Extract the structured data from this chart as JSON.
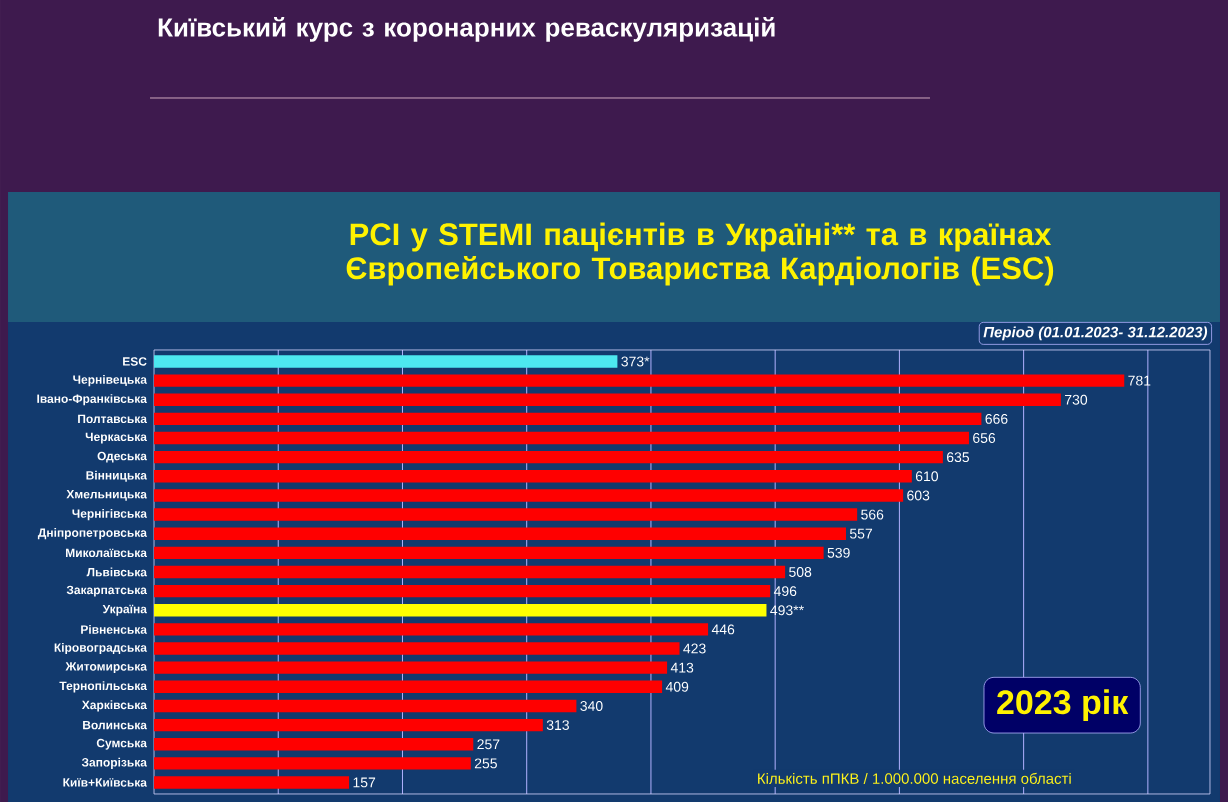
{
  "chart_data": {
    "type": "bar",
    "orientation": "horizontal",
    "title": "PCI у STEMI пацієнтів в Україні** та в країнах Європейського Товариства Кардіологів (ESC)",
    "subtitle": "Період (01.01.2023- 31.12.2023)",
    "xlabel": "Кількість пПКВ / 1.000.000 населення області",
    "annotations": [
      "Київський курс з коронарних реваскуляризацій",
      "2023 рік"
    ],
    "categories": [
      "ESC",
      "Чернівецька",
      "Івано-Франківська",
      "Полтавська",
      "Черкаська",
      "Одеська",
      "Вінницька",
      "Хмельницька",
      "Чернігівська",
      "Дніпропетровська",
      "Миколаївська",
      "Львівська",
      "Закарпатська",
      "Україна",
      "Рівненська",
      "Кіровоградська",
      "Житомирська",
      "Тернопільська",
      "Харківська",
      "Волинська",
      "Сумська",
      "Запорізька",
      "Київ+Київська"
    ],
    "values": [
      373,
      781,
      730,
      666,
      656,
      635,
      610,
      603,
      566,
      557,
      539,
      508,
      496,
      493,
      446,
      423,
      413,
      409,
      340,
      313,
      257,
      255,
      157
    ],
    "value_labels": [
      "373*",
      "781",
      "730",
      "666",
      "656",
      "635",
      "610",
      "603",
      "566",
      "557",
      "539",
      "508",
      "496",
      "493**",
      "446",
      "423",
      "413",
      "409",
      "340",
      "313",
      "257",
      "255",
      "157"
    ],
    "colors": [
      "#4de8f0",
      "#ff0000",
      "#ff0000",
      "#ff0000",
      "#ff0000",
      "#ff0000",
      "#ff0000",
      "#ff0000",
      "#ff0000",
      "#ff0000",
      "#ff0000",
      "#ff0000",
      "#ff0000",
      "#ffff00",
      "#ff0000",
      "#ff0000",
      "#ff0000",
      "#ff0000",
      "#ff0000",
      "#ff0000",
      "#ff0000",
      "#ff0000",
      "#ff0000"
    ],
    "xlim": [
      0,
      850
    ],
    "xticks": [
      {
        "value": 100,
        "label": null
      },
      {
        "value": 200,
        "label": null
      },
      {
        "value": 300,
        "label": null
      },
      {
        "value": 400,
        "label": null
      },
      {
        "value": 500,
        "label": null
      },
      {
        "value": 600,
        "label": null
      },
      {
        "value": 700,
        "label": null
      },
      {
        "value": 800,
        "label": null
      }
    ],
    "grid": "x",
    "tick_labels": "y"
  }
}
